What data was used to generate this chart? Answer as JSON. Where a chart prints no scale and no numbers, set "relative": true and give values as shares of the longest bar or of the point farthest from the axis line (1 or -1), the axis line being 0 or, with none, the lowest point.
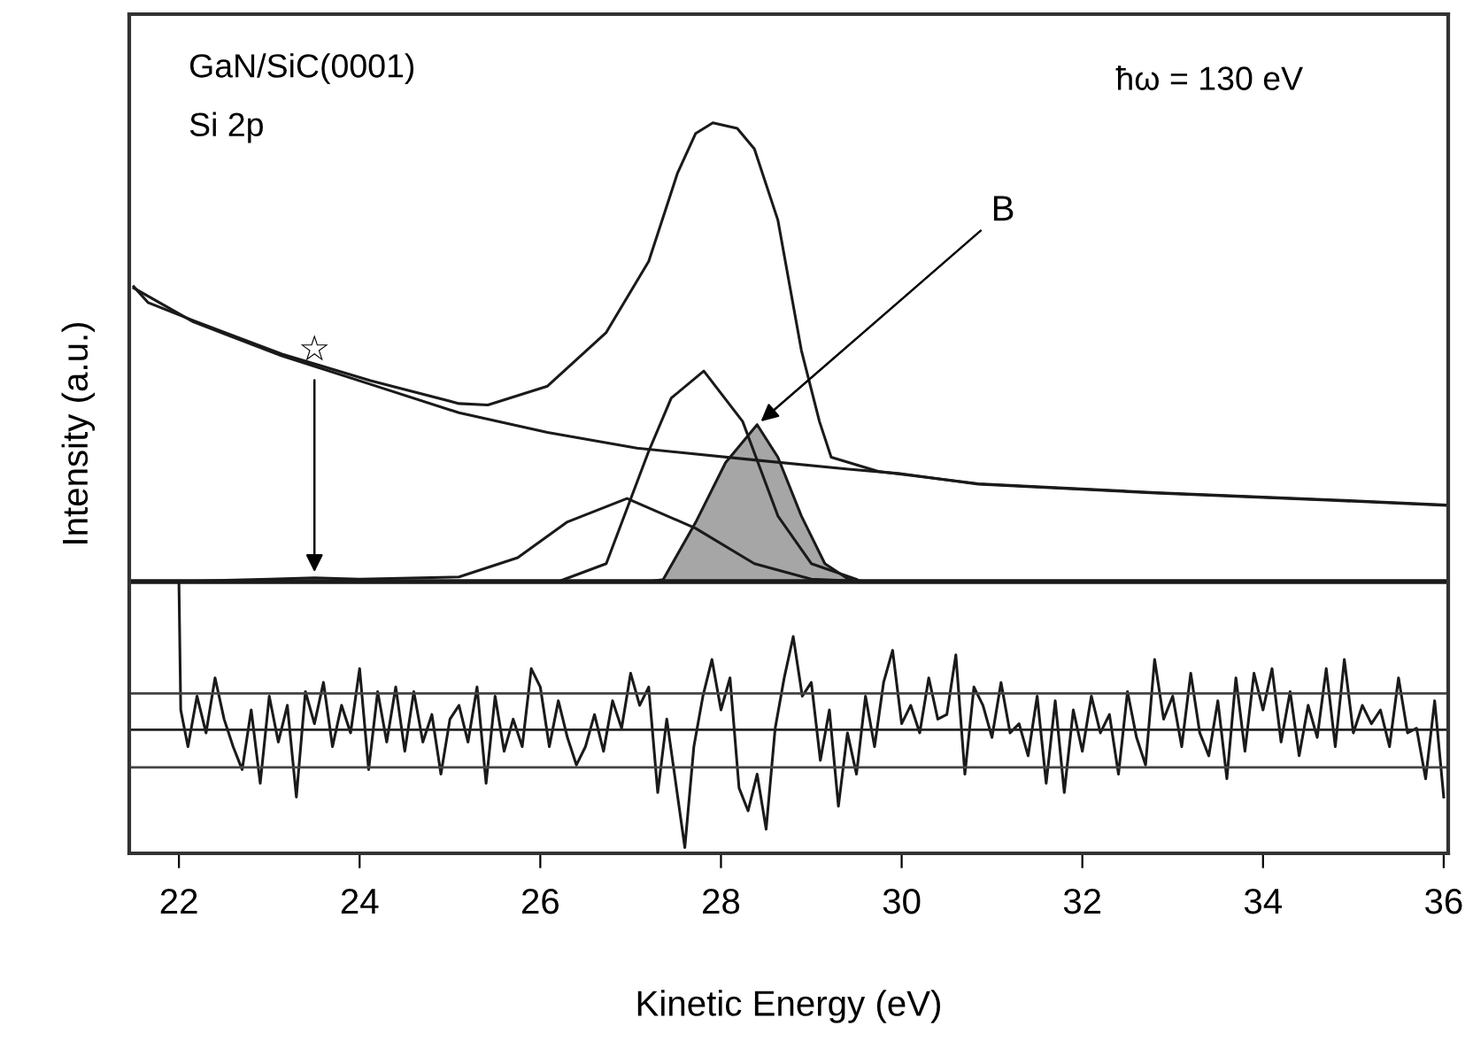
{
  "chart_data": {
    "type": "line",
    "relative": true,
    "xlabel": "Kinetic Energy (eV)",
    "ylabel": "Intensity (a.u.)",
    "xlim": [
      21.45,
      36.05
    ],
    "xticks": [
      22,
      24,
      26,
      28,
      30,
      32,
      34,
      36
    ],
    "grid": false,
    "legend": false,
    "tick_labels": "x",
    "annotations": [
      "GaN/SiC(0001)",
      "Si 2p",
      "ħω = 130 eV",
      {
        "text": "B",
        "x": 28.4,
        "y": 0.342
      },
      {
        "text": "☆",
        "x": 23.5,
        "y": 0.01
      }
    ],
    "ref_lines": [
      {
        "axis": "y",
        "value": -0.244,
        "color": "#444444"
      },
      {
        "axis": "y",
        "value": -0.323,
        "color": "#222222"
      },
      {
        "axis": "y",
        "value": -0.405,
        "color": "#444444"
      }
    ],
    "series": [
      {
        "color": "#1a1a1a",
        "x": [
          21.5,
          21.66,
          22.16,
          23.14,
          24.12,
          25.1,
          25.42,
          26.08,
          26.73,
          27.2,
          27.52,
          27.72,
          27.91,
          28.18,
          28.37,
          28.63,
          28.89,
          29.09,
          29.22,
          29.74,
          30.85,
          32.81,
          34.77,
          36.02
        ],
        "values": [
          0.643,
          0.608,
          0.569,
          0.496,
          0.438,
          0.388,
          0.385,
          0.426,
          0.543,
          0.698,
          0.891,
          0.977,
          1.0,
          0.988,
          0.943,
          0.788,
          0.504,
          0.349,
          0.271,
          0.24,
          0.213,
          0.194,
          0.178,
          0.167
        ]
      },
      {
        "color": "#1a1a1a",
        "x": [
          21.5,
          22.16,
          23.14,
          24.12,
          25.1,
          26.08,
          27.07,
          28.37,
          29.41,
          30.0,
          30.85,
          32.81,
          34.77,
          36.02
        ],
        "values": [
          0.64,
          0.566,
          0.492,
          0.43,
          0.368,
          0.325,
          0.291,
          0.265,
          0.245,
          0.235,
          0.212,
          0.193,
          0.177,
          0.166
        ]
      },
      {
        "color": "#1a1a1a",
        "x": [
          22.0,
          23.0,
          23.5,
          24.0,
          25.1,
          25.75,
          26.3,
          26.96,
          27.72,
          28.37,
          29.0,
          29.6
        ],
        "values": [
          0.0,
          0.005,
          0.008,
          0.005,
          0.01,
          0.052,
          0.13,
          0.181,
          0.116,
          0.039,
          0.005,
          0.0
        ]
      },
      {
        "color": "#1a1a1a",
        "x": [
          26.2,
          26.73,
          27.2,
          27.45,
          27.81,
          28.24,
          28.63,
          29.0,
          29.5
        ],
        "values": [
          0.0,
          0.039,
          0.284,
          0.4,
          0.459,
          0.349,
          0.143,
          0.039,
          0.005
        ]
      },
      {
        "type": "area",
        "color": "#a6a6a6",
        "x": [
          27.2,
          27.36,
          27.72,
          28.05,
          28.4,
          28.63,
          28.89,
          29.15,
          29.41,
          29.6
        ],
        "values": [
          0.0,
          0.004,
          0.129,
          0.259,
          0.342,
          0.271,
          0.143,
          0.039,
          0.005,
          0.0
        ]
      },
      {
        "color": "#1a1a1a",
        "x": [
          22.0,
          22.02,
          22.1,
          22.2,
          22.3,
          22.4,
          22.5,
          22.6,
          22.7,
          22.8,
          22.9,
          23.0,
          23.1,
          23.2,
          23.3,
          23.4,
          23.5,
          23.6,
          23.7,
          23.8,
          23.9,
          24.0,
          24.1,
          24.2,
          24.3,
          24.4,
          24.5,
          24.6,
          24.7,
          24.8,
          24.9,
          25.0,
          25.1,
          25.2,
          25.3,
          25.4,
          25.5,
          25.6,
          25.7,
          25.8,
          25.9,
          26.0,
          26.1,
          26.2,
          26.3,
          26.4,
          26.5,
          26.6,
          26.7,
          26.8,
          26.9,
          27.0,
          27.1,
          27.2,
          27.3,
          27.4,
          27.5,
          27.6,
          27.7,
          27.8,
          27.9,
          28.0,
          28.1,
          28.2,
          28.3,
          28.4,
          28.5,
          28.6,
          28.7,
          28.8,
          28.9,
          29.0,
          29.1,
          29.2,
          29.3,
          29.4,
          29.5,
          29.6,
          29.7,
          29.8,
          29.9,
          30.0,
          30.1,
          30.2,
          30.3,
          30.4,
          30.5,
          30.6,
          30.7,
          30.8,
          30.9,
          31.0,
          31.1,
          31.2,
          31.3,
          31.4,
          31.5,
          31.6,
          31.7,
          31.8,
          31.9,
          32.0,
          32.1,
          32.2,
          32.3,
          32.4,
          32.5,
          32.6,
          32.7,
          32.8,
          32.9,
          33.0,
          33.1,
          33.2,
          33.3,
          33.4,
          33.5,
          33.6,
          33.7,
          33.8,
          33.9,
          34.0,
          34.1,
          34.2,
          34.3,
          34.4,
          34.5,
          34.6,
          34.7,
          34.8,
          34.9,
          35.0,
          35.1,
          35.2,
          35.3,
          35.4,
          35.5,
          35.6,
          35.7,
          35.8,
          35.9,
          36.0
        ],
        "values": [
          0,
          -0.28,
          -0.36,
          -0.25,
          -0.33,
          -0.21,
          -0.3,
          -0.36,
          -0.41,
          -0.28,
          -0.44,
          -0.25,
          -0.35,
          -0.27,
          -0.47,
          -0.24,
          -0.31,
          -0.22,
          -0.36,
          -0.27,
          -0.33,
          -0.19,
          -0.41,
          -0.24,
          -0.35,
          -0.23,
          -0.37,
          -0.24,
          -0.35,
          -0.29,
          -0.42,
          -0.3,
          -0.27,
          -0.35,
          -0.23,
          -0.44,
          -0.25,
          -0.37,
          -0.3,
          -0.36,
          -0.19,
          -0.23,
          -0.36,
          -0.26,
          -0.34,
          -0.4,
          -0.36,
          -0.29,
          -0.37,
          -0.26,
          -0.32,
          -0.2,
          -0.27,
          -0.23,
          -0.46,
          -0.3,
          -0.44,
          -0.58,
          -0.36,
          -0.25,
          -0.17,
          -0.28,
          -0.21,
          -0.45,
          -0.5,
          -0.42,
          -0.54,
          -0.32,
          -0.21,
          -0.12,
          -0.25,
          -0.22,
          -0.39,
          -0.28,
          -0.49,
          -0.33,
          -0.42,
          -0.25,
          -0.36,
          -0.22,
          -0.15,
          -0.31,
          -0.27,
          -0.33,
          -0.21,
          -0.3,
          -0.29,
          -0.16,
          -0.42,
          -0.23,
          -0.27,
          -0.34,
          -0.22,
          -0.33,
          -0.31,
          -0.38,
          -0.25,
          -0.44,
          -0.26,
          -0.46,
          -0.28,
          -0.37,
          -0.25,
          -0.33,
          -0.29,
          -0.42,
          -0.24,
          -0.34,
          -0.4,
          -0.17,
          -0.3,
          -0.25,
          -0.36,
          -0.2,
          -0.33,
          -0.38,
          -0.26,
          -0.43,
          -0.21,
          -0.37,
          -0.2,
          -0.28,
          -0.19,
          -0.35,
          -0.24,
          -0.38,
          -0.27,
          -0.34,
          -0.19,
          -0.36,
          -0.17,
          -0.33,
          -0.27,
          -0.31,
          -0.28,
          -0.36,
          -0.21,
          -0.33,
          -0.32,
          -0.43,
          -0.26,
          -0.47
        ]
      }
    ]
  }
}
